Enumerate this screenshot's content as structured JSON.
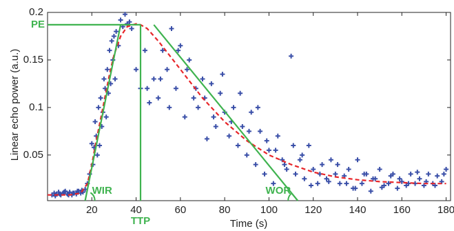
{
  "chart_data": {
    "type": "scatter",
    "x_label": "Time (s)",
    "y_label": "Linear echo power (a.u.)",
    "xlim": [
      0,
      182
    ],
    "ylim": [
      0.002,
      0.2
    ],
    "xticks": [
      20,
      40,
      60,
      80,
      100,
      120,
      140,
      160,
      180
    ],
    "yticks": [
      0.05,
      0.1,
      0.15,
      0.2
    ],
    "grid": false,
    "series": [
      {
        "type": "scatter",
        "color": "#3a4fa8",
        "x": [
          2,
          3,
          4,
          5,
          6,
          7,
          8,
          9,
          10,
          11,
          12,
          13,
          14,
          15,
          16,
          3.5,
          5.5,
          7.5,
          9.5,
          11.5,
          13.5,
          15.5,
          17,
          18,
          19,
          20,
          20.5,
          21,
          21.5,
          22,
          22.5,
          23,
          23.5,
          24,
          24.5,
          25,
          25.5,
          26,
          26.5,
          27,
          27.5,
          28,
          28.5,
          29,
          29.5,
          30,
          30.5,
          31,
          32,
          33,
          34,
          35,
          36,
          37,
          38,
          40,
          42,
          44,
          46,
          48,
          50,
          52,
          54,
          56,
          58,
          60,
          62,
          64,
          66,
          68,
          70,
          72,
          74,
          76,
          78,
          80,
          82,
          84,
          86,
          88,
          90,
          92,
          94,
          96,
          98,
          100,
          102,
          104,
          106,
          108,
          110,
          112,
          114,
          116,
          118,
          120,
          122,
          124,
          126,
          128,
          130,
          132,
          134,
          136,
          138,
          140,
          142,
          144,
          146,
          148,
          150,
          152,
          154,
          156,
          158,
          160,
          162,
          164,
          166,
          168,
          170,
          172,
          174,
          176,
          178,
          180,
          45,
          51,
          55,
          59,
          63,
          67,
          71,
          75,
          79,
          83,
          87,
          91,
          95,
          99,
          103,
          107,
          111,
          115,
          119,
          123,
          127,
          131,
          135,
          139,
          143,
          147,
          151,
          155,
          159,
          163,
          167,
          171,
          175,
          179
        ],
        "values": [
          0.008,
          0.01,
          0.009,
          0.011,
          0.008,
          0.01,
          0.012,
          0.009,
          0.011,
          0.008,
          0.01,
          0.009,
          0.012,
          0.01,
          0.011,
          0.007,
          0.009,
          0.011,
          0.008,
          0.01,
          0.012,
          0.013,
          0.014,
          0.02,
          0.03,
          0.062,
          0.04,
          0.058,
          0.085,
          0.07,
          0.05,
          0.1,
          0.06,
          0.11,
          0.08,
          0.095,
          0.13,
          0.12,
          0.09,
          0.14,
          0.115,
          0.16,
          0.125,
          0.17,
          0.15,
          0.175,
          0.13,
          0.18,
          0.165,
          0.192,
          0.185,
          0.198,
          0.188,
          0.19,
          0.183,
          0.14,
          0.12,
          0.16,
          0.105,
          0.13,
          0.11,
          0.16,
          0.14,
          0.183,
          0.12,
          0.165,
          0.09,
          0.15,
          0.11,
          0.1,
          0.13,
          0.067,
          0.125,
          0.08,
          0.115,
          0.095,
          0.07,
          0.1,
          0.06,
          0.08,
          0.05,
          0.095,
          0.04,
          0.075,
          0.03,
          0.055,
          0.02,
          0.07,
          0.045,
          0.035,
          0.154,
          0.03,
          0.045,
          0.025,
          0.06,
          0.035,
          0.02,
          0.04,
          0.025,
          0.045,
          0.03,
          0.02,
          0.028,
          0.035,
          0.015,
          0.045,
          0.02,
          0.03,
          0.012,
          0.025,
          0.035,
          0.018,
          0.02,
          0.03,
          0.015,
          0.022,
          0.018,
          0.03,
          0.02,
          0.025,
          0.018,
          0.03,
          0.02,
          0.028,
          0.022,
          0.035,
          0.12,
          0.13,
          0.1,
          0.16,
          0.14,
          0.12,
          0.11,
          0.09,
          0.135,
          0.085,
          0.115,
          0.075,
          0.1,
          0.065,
          0.055,
          0.04,
          0.06,
          0.05,
          0.018,
          0.03,
          0.022,
          0.04,
          0.02,
          0.015,
          0.03,
          0.025,
          0.016,
          0.028,
          0.025,
          0.02,
          0.032,
          0.022,
          0.018,
          0.03
        ]
      },
      {
        "type": "line",
        "color": "#e8262a",
        "style": "dashed",
        "x": [
          0,
          10,
          15,
          18,
          20,
          22,
          25,
          28,
          30,
          33,
          36,
          40,
          42,
          45,
          50,
          55,
          60,
          70,
          80,
          90,
          100,
          110,
          120,
          130,
          140,
          150,
          160,
          170,
          180
        ],
        "values": [
          0.008,
          0.008,
          0.01,
          0.02,
          0.04,
          0.065,
          0.1,
          0.135,
          0.155,
          0.175,
          0.185,
          0.188,
          0.187,
          0.183,
          0.17,
          0.155,
          0.14,
          0.11,
          0.085,
          0.065,
          0.05,
          0.04,
          0.032,
          0.027,
          0.024,
          0.022,
          0.021,
          0.02,
          0.02
        ]
      }
    ],
    "annotations": [
      {
        "label": "PE",
        "color": "#3fb34f",
        "x": [
          0,
          42
        ],
        "values": [
          0.187,
          0.187
        ]
      },
      {
        "label": "TTP",
        "color": "#3fb34f",
        "x": [
          42,
          42
        ],
        "values": [
          0.187,
          0.002
        ]
      },
      {
        "label": "WIR",
        "color": "#3fb34f",
        "x": [
          17,
          33
        ],
        "values": [
          0.002,
          0.187
        ]
      },
      {
        "label": "WOR",
        "color": "#3fb34f",
        "x": [
          48,
          113
        ],
        "values": [
          0.187,
          0.002
        ]
      }
    ]
  }
}
